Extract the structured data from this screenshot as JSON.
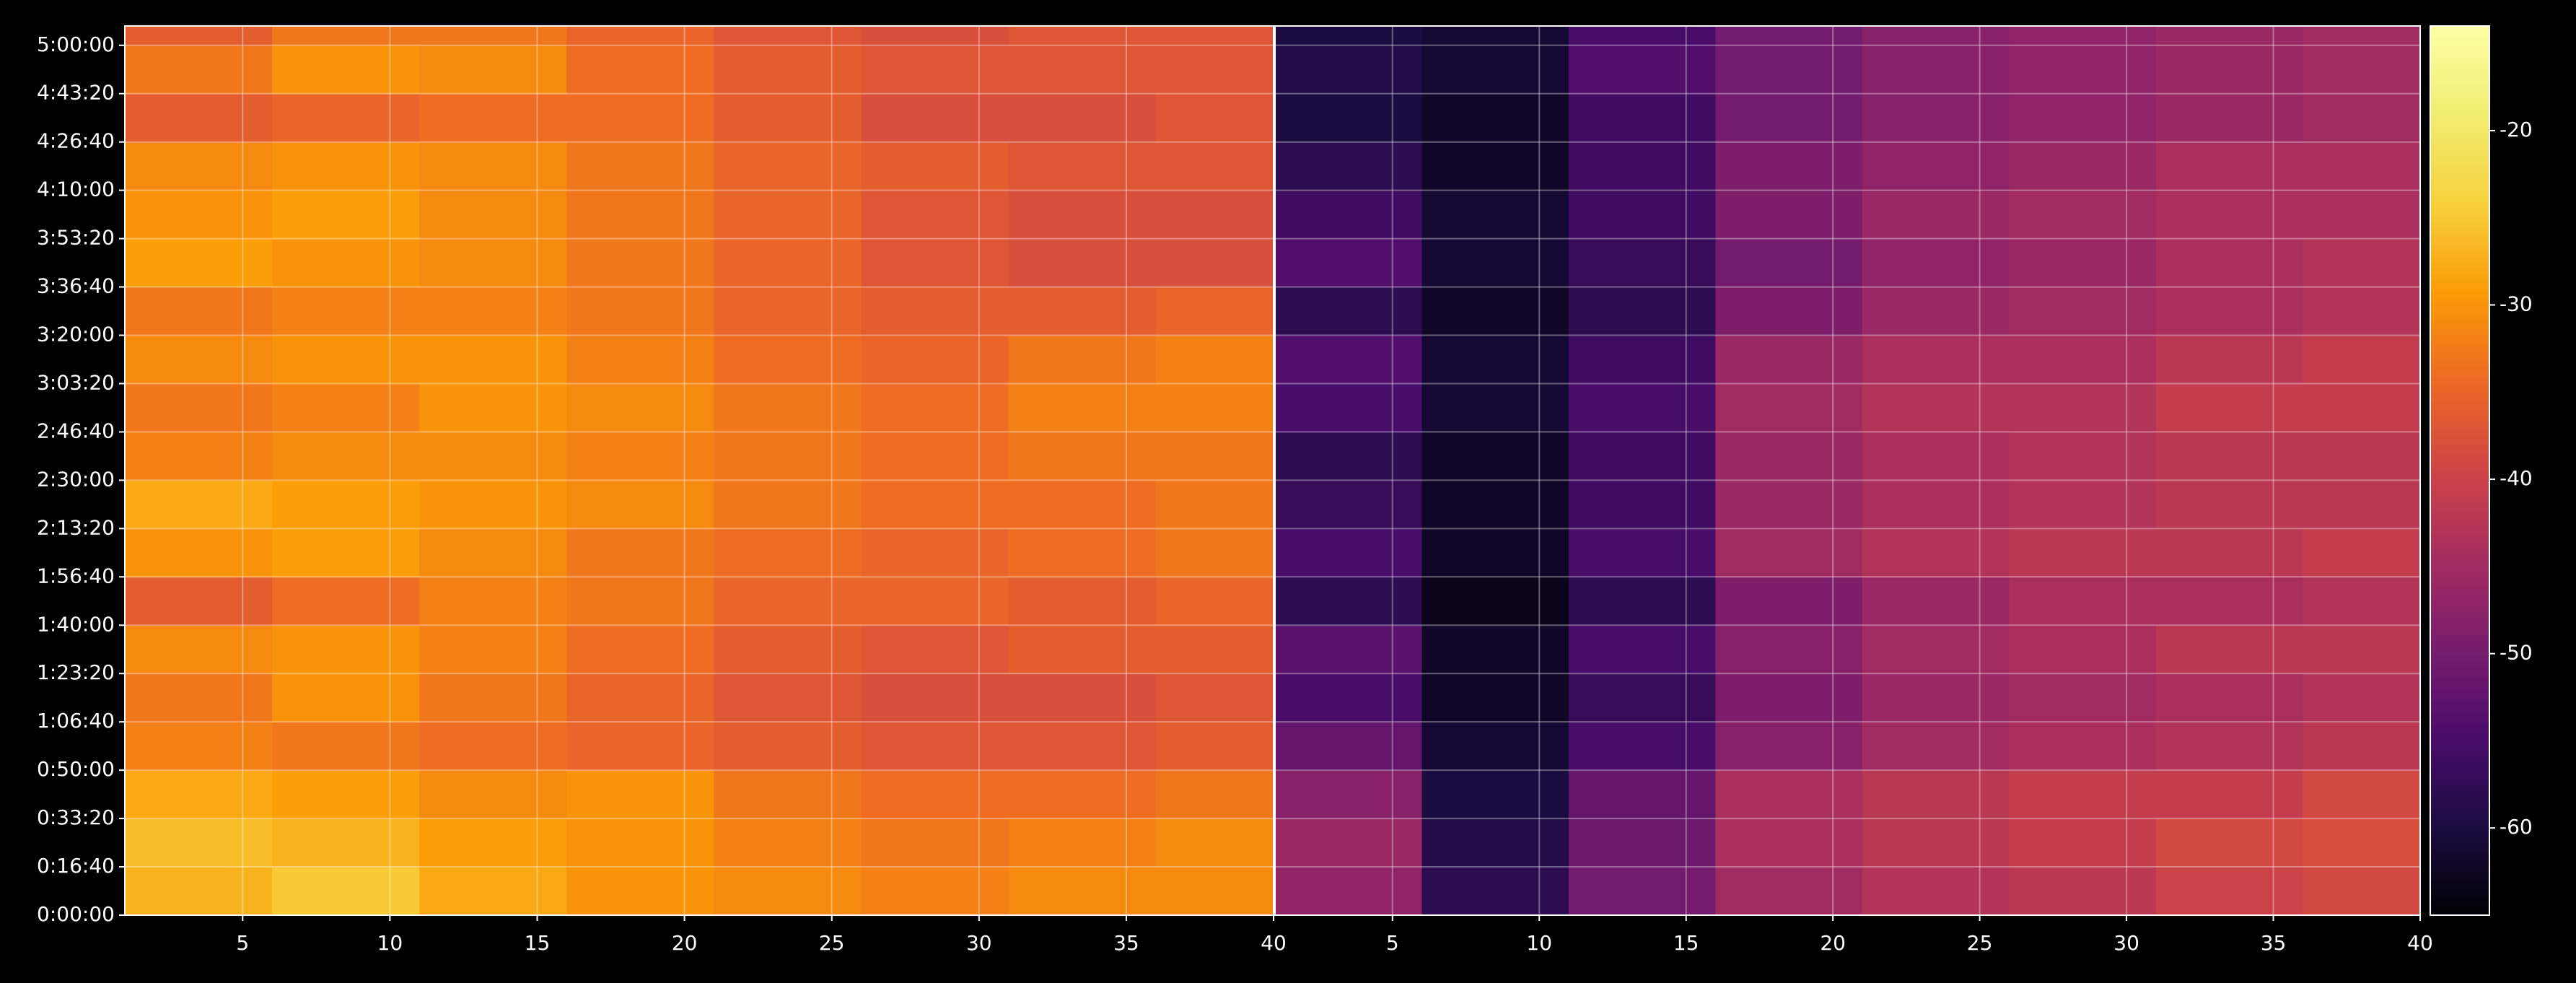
{
  "chart_data": {
    "type": "heatmap",
    "colormap": "inferno",
    "grid": true,
    "ylim": [
      0,
      18400
    ],
    "yticks": [
      {
        "value": 0,
        "label": "0:00:00"
      },
      {
        "value": 1000,
        "label": "0:16:40"
      },
      {
        "value": 2000,
        "label": "0:33:20"
      },
      {
        "value": 3000,
        "label": "0:50:00"
      },
      {
        "value": 4000,
        "label": "1:06:40"
      },
      {
        "value": 5000,
        "label": "1:23:20"
      },
      {
        "value": 6000,
        "label": "1:40:00"
      },
      {
        "value": 7000,
        "label": "1:56:40"
      },
      {
        "value": 8000,
        "label": "2:13:20"
      },
      {
        "value": 9000,
        "label": "2:30:00"
      },
      {
        "value": 10000,
        "label": "2:46:40"
      },
      {
        "value": 11000,
        "label": "3:03:20"
      },
      {
        "value": 12000,
        "label": "3:20:00"
      },
      {
        "value": 13000,
        "label": "3:36:40"
      },
      {
        "value": 14000,
        "label": "3:53:20"
      },
      {
        "value": 15000,
        "label": "4:10:00"
      },
      {
        "value": 16000,
        "label": "4:26:40"
      },
      {
        "value": 17000,
        "label": "4:43:20"
      },
      {
        "value": 18000,
        "label": "5:00:00"
      }
    ],
    "ybins": [
      0,
      1000,
      2000,
      3000,
      4000,
      5000,
      6000,
      7000,
      8000,
      9000,
      10000,
      11000,
      12000,
      13000,
      14000,
      15000,
      16000,
      17000,
      18000,
      18400
    ],
    "colorbar": {
      "lim": [
        -65,
        -14
      ],
      "ticks": [
        -20,
        -30,
        -40,
        -50,
        -60
      ]
    },
    "panels": [
      {
        "xlim": [
          1,
          40
        ],
        "xticks": [
          5,
          10,
          15,
          20,
          25,
          30,
          35,
          40
        ],
        "xbins": [
          1,
          6,
          11,
          16,
          21,
          26,
          31,
          36,
          40
        ],
        "values": [
          [
            -27,
            -25,
            -28,
            -30,
            -31,
            -32,
            -31,
            -31
          ],
          [
            -26,
            -27,
            -29,
            -30,
            -32,
            -33,
            -32,
            -31
          ],
          [
            -28,
            -29,
            -31,
            -30,
            -33,
            -34,
            -34,
            -33
          ],
          [
            -32,
            -33,
            -34,
            -35,
            -36,
            -37,
            -37,
            -36
          ],
          [
            -33,
            -30,
            -33,
            -35,
            -37,
            -38,
            -38,
            -37
          ],
          [
            -31,
            -30,
            -32,
            -34,
            -36,
            -37,
            -36,
            -36
          ],
          [
            -36,
            -34,
            -32,
            -33,
            -35,
            -35,
            -36,
            -35
          ],
          [
            -30,
            -29,
            -31,
            -33,
            -34,
            -35,
            -34,
            -33
          ],
          [
            -28,
            -29,
            -30,
            -31,
            -33,
            -34,
            -34,
            -33
          ],
          [
            -32,
            -31,
            -31,
            -32,
            -33,
            -34,
            -33,
            -33
          ],
          [
            -33,
            -32,
            -30,
            -31,
            -33,
            -34,
            -32,
            -32
          ],
          [
            -31,
            -30,
            -30,
            -32,
            -34,
            -35,
            -33,
            -32
          ],
          [
            -33,
            -32,
            -32,
            -33,
            -35,
            -36,
            -36,
            -35
          ],
          [
            -29,
            -30,
            -31,
            -33,
            -35,
            -37,
            -38,
            -38
          ],
          [
            -30,
            -29,
            -31,
            -33,
            -35,
            -37,
            -38,
            -38
          ],
          [
            -31,
            -30,
            -31,
            -33,
            -35,
            -36,
            -37,
            -37
          ],
          [
            -36,
            -35,
            -34,
            -34,
            -36,
            -38,
            -38,
            -37
          ],
          [
            -33,
            -30,
            -31,
            -34,
            -36,
            -37,
            -37,
            -37
          ],
          [
            -36,
            -33,
            -33,
            -35,
            -37,
            -38,
            -37,
            -37
          ]
        ]
      },
      {
        "xlim": [
          1,
          40
        ],
        "xticks": [
          5,
          10,
          15,
          20,
          25,
          30,
          35,
          40
        ],
        "xbins": [
          1,
          6,
          11,
          16,
          21,
          26,
          31,
          36,
          40
        ],
        "values": [
          [
            -47,
            -58,
            -50,
            -45,
            -43,
            -42,
            -40,
            -39
          ],
          [
            -46,
            -59,
            -51,
            -44,
            -42,
            -41,
            -39,
            -38
          ],
          [
            -48,
            -60,
            -52,
            -44,
            -42,
            -41,
            -41,
            -39
          ],
          [
            -52,
            -61,
            -55,
            -48,
            -45,
            -44,
            -43,
            -42
          ],
          [
            -55,
            -62,
            -57,
            -49,
            -46,
            -45,
            -44,
            -43
          ],
          [
            -53,
            -62,
            -55,
            -48,
            -45,
            -44,
            -42,
            -42
          ],
          [
            -58,
            -63,
            -58,
            -49,
            -46,
            -44,
            -44,
            -43
          ],
          [
            -55,
            -62,
            -55,
            -45,
            -43,
            -42,
            -42,
            -41
          ],
          [
            -57,
            -62,
            -56,
            -46,
            -44,
            -43,
            -42,
            -42
          ],
          [
            -58,
            -62,
            -56,
            -46,
            -44,
            -43,
            -42,
            -42
          ],
          [
            -55,
            -61,
            -55,
            -45,
            -43,
            -43,
            -41,
            -41
          ],
          [
            -54,
            -61,
            -56,
            -46,
            -44,
            -44,
            -42,
            -41
          ],
          [
            -58,
            -62,
            -58,
            -49,
            -46,
            -45,
            -44,
            -43
          ],
          [
            -54,
            -61,
            -57,
            -50,
            -47,
            -46,
            -44,
            -43
          ],
          [
            -56,
            -61,
            -56,
            -49,
            -46,
            -45,
            -44,
            -44
          ],
          [
            -58,
            -62,
            -56,
            -49,
            -47,
            -46,
            -44,
            -44
          ],
          [
            -60,
            -62,
            -56,
            -50,
            -48,
            -47,
            -46,
            -45
          ],
          [
            -59,
            -61,
            -54,
            -50,
            -48,
            -47,
            -46,
            -45
          ],
          [
            -60,
            -61,
            -55,
            -50,
            -48,
            -47,
            -46,
            -45
          ]
        ]
      }
    ]
  }
}
